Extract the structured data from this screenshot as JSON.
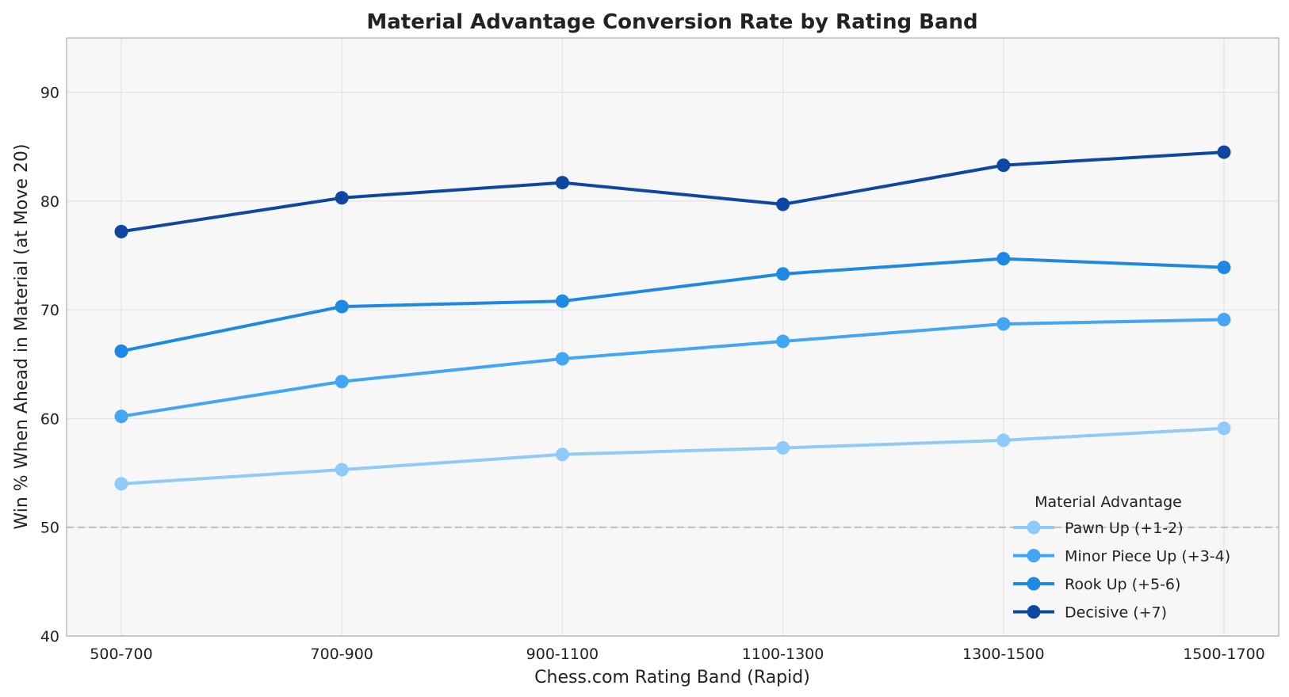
{
  "chart_data": {
    "type": "line",
    "title": "Material Advantage Conversion Rate by Rating Band",
    "xlabel": "Chess.com Rating Band (Rapid)",
    "ylabel": "Win % When Ahead in Material (at Move 20)",
    "categories": [
      "500-700",
      "700-900",
      "900-1100",
      "1100-1300",
      "1300-1500",
      "1500-1700"
    ],
    "ylim": [
      40,
      95
    ],
    "yticks": [
      40,
      50,
      60,
      70,
      80,
      90
    ],
    "grid": true,
    "reference_line": {
      "y": 50,
      "style": "dashed",
      "color": "#bbbbbb"
    },
    "legend": {
      "title": "Material Advantage",
      "position": "lower-right"
    },
    "series": [
      {
        "name": "Pawn Up (+1-2)",
        "color": "#90caf9",
        "values": [
          54.0,
          55.3,
          56.7,
          57.3,
          58.0,
          59.1
        ]
      },
      {
        "name": "Minor Piece Up (+3-4)",
        "color": "#42a5f5",
        "values": [
          60.2,
          63.4,
          65.5,
          67.1,
          68.7,
          69.1
        ]
      },
      {
        "name": "Rook Up (+5-6)",
        "color": "#1e88e5",
        "values": [
          66.2,
          70.3,
          70.8,
          73.3,
          74.7,
          73.9
        ]
      },
      {
        "name": "Decisive (+7)",
        "color": "#0d47a1",
        "values": [
          77.2,
          80.3,
          81.7,
          79.7,
          83.3,
          84.5
        ]
      }
    ]
  }
}
